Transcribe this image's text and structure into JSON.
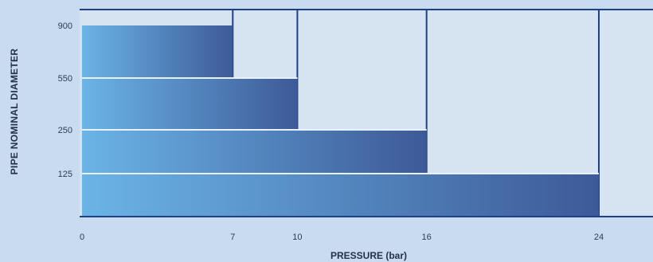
{
  "chart_data": {
    "type": "bar",
    "orientation": "horizontal",
    "categories": [
      "900",
      "550",
      "250",
      "125"
    ],
    "values": [
      7,
      10,
      16,
      24
    ],
    "xlabel": "PRESSURE (bar)",
    "ylabel": "PIPE NOMINAL DIAMETER",
    "xticks": [
      "0",
      "7",
      "10",
      "16",
      "24"
    ],
    "xlim": [
      0,
      26
    ],
    "grid": true,
    "legend": "none",
    "colors": {
      "background": "#c9dcef",
      "plot_background": "#d6e4f2",
      "bar_light": "#6bb4e6",
      "bar_dark": "#3d5a98",
      "grid_line": "#1f3f86",
      "axis_line": "#1f3f86"
    }
  }
}
